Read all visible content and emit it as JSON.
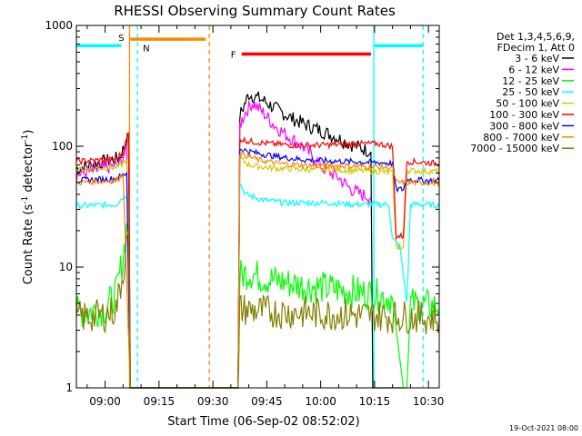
{
  "chart_data": {
    "type": "line",
    "title": "RHESSI Observing Summary Count Rates",
    "xlabel": "Start Time (06-Sep-02 08:52:02)",
    "ylabel_main": "Count Rate (s",
    "ylabel_sup1": "-1",
    "ylabel_mid": " detector",
    "ylabel_sup2": "-1",
    "ylabel_end": ")",
    "yscale": "log",
    "ylim": [
      1,
      1000
    ],
    "xlim_minutes": [
      52,
      153
    ],
    "y_ticks": [
      {
        "value": 1,
        "label": "1"
      },
      {
        "value": 10,
        "label": "10"
      },
      {
        "value": 100,
        "label": "100"
      },
      {
        "value": 1000,
        "label": "1000"
      }
    ],
    "x_ticks": [
      {
        "value": 60,
        "label": "09:00"
      },
      {
        "value": 75,
        "label": "09:15"
      },
      {
        "value": 90,
        "label": "09:30"
      },
      {
        "value": 105,
        "label": "09:45"
      },
      {
        "value": 120,
        "label": "10:00"
      },
      {
        "value": 135,
        "label": "10:15"
      },
      {
        "value": 150,
        "label": "10:30"
      }
    ],
    "legend_header": [
      "Det 1,3,4,5,6,9,",
      "FDecim 1, Att 0"
    ],
    "series": [
      {
        "name": "3 - 6 keV",
        "color": "#000000",
        "values": [
          [
            52,
            65
          ],
          [
            64,
            80
          ],
          [
            66.5,
            120
          ],
          [
            67,
            1
          ],
          [
            80,
            1
          ],
          [
            88,
            1
          ],
          [
            97,
            1
          ],
          [
            97.5,
            180
          ],
          [
            100,
            270
          ],
          [
            104,
            240
          ],
          [
            108,
            200
          ],
          [
            112,
            170
          ],
          [
            116,
            150
          ],
          [
            120,
            135
          ],
          [
            124,
            120
          ],
          [
            128,
            105
          ],
          [
            132,
            95
          ],
          [
            134,
            90
          ],
          [
            134.5,
            1
          ],
          [
            135.5,
            1
          ],
          [
            143,
            1
          ]
        ]
      },
      {
        "name": "6 - 12 keV",
        "color": "#ff00ff",
        "values": [
          [
            52,
            58
          ],
          [
            64,
            70
          ],
          [
            66,
            95
          ],
          [
            67,
            1
          ],
          [
            97,
            1
          ],
          [
            97.5,
            150
          ],
          [
            99,
            190
          ],
          [
            101,
            230
          ],
          [
            104,
            190
          ],
          [
            107,
            150
          ],
          [
            111,
            120
          ],
          [
            115,
            100
          ],
          [
            118,
            80
          ],
          [
            121,
            65
          ],
          [
            125,
            55
          ],
          [
            128,
            45
          ],
          [
            131,
            40
          ],
          [
            134,
            38
          ]
        ]
      },
      {
        "name": "12 - 25 keV",
        "color": "#00ff00",
        "values": [
          [
            52,
            4.2
          ],
          [
            60,
            4.5
          ],
          [
            63,
            6
          ],
          [
            65,
            12
          ],
          [
            66.5,
            30
          ],
          [
            67,
            1
          ],
          [
            97,
            1
          ],
          [
            97.5,
            8.5
          ],
          [
            100,
            9
          ],
          [
            105,
            8
          ],
          [
            110,
            7.5
          ],
          [
            115,
            7
          ],
          [
            120,
            6.8
          ],
          [
            125,
            6.5
          ],
          [
            130,
            6.2
          ],
          [
            134,
            6
          ],
          [
            137,
            5.8
          ],
          [
            140,
            5.5
          ],
          [
            143,
            1
          ],
          [
            144,
            1
          ],
          [
            145,
            5
          ],
          [
            150,
            4.8
          ],
          [
            153,
            4.7
          ]
        ]
      },
      {
        "name": "25 - 50 keV",
        "color": "#00ffff",
        "values": [
          [
            52,
            32
          ],
          [
            63,
            33
          ],
          [
            65,
            38
          ],
          [
            66.5,
            40
          ],
          [
            67,
            1
          ],
          [
            97,
            1
          ],
          [
            97.5,
            50
          ],
          [
            99,
            40
          ],
          [
            104,
            36
          ],
          [
            110,
            34
          ],
          [
            116,
            34
          ],
          [
            122,
            34
          ],
          [
            128,
            33
          ],
          [
            134,
            33
          ],
          [
            139,
            33
          ],
          [
            140,
            17
          ],
          [
            142,
            15
          ],
          [
            144,
            5
          ],
          [
            145,
            33
          ],
          [
            150,
            33
          ],
          [
            153,
            32
          ]
        ]
      },
      {
        "name": "50 - 100 keV",
        "color": "#cccc00",
        "values": [
          [
            52,
            64
          ],
          [
            64,
            68
          ],
          [
            66,
            78
          ],
          [
            67,
            1
          ],
          [
            97,
            1
          ],
          [
            97.5,
            80
          ],
          [
            100,
            70
          ],
          [
            106,
            66
          ],
          [
            112,
            65
          ],
          [
            118,
            64
          ],
          [
            124,
            64
          ],
          [
            130,
            63
          ],
          [
            136,
            62
          ],
          [
            140,
            60
          ],
          [
            141,
            15
          ],
          [
            143,
            14
          ],
          [
            144,
            63
          ],
          [
            150,
            62
          ],
          [
            153,
            62
          ]
        ]
      },
      {
        "name": "100 - 300 keV",
        "color": "#ff0000",
        "values": [
          [
            52,
            75
          ],
          [
            63,
            78
          ],
          [
            65,
            90
          ],
          [
            66.5,
            130
          ],
          [
            67,
            1
          ],
          [
            97,
            1
          ],
          [
            97.5,
            115
          ],
          [
            100,
            110
          ],
          [
            106,
            105
          ],
          [
            112,
            102
          ],
          [
            118,
            102
          ],
          [
            124,
            103
          ],
          [
            130,
            105
          ],
          [
            136,
            105
          ],
          [
            140,
            100
          ],
          [
            141,
            18
          ],
          [
            143,
            18
          ],
          [
            144,
            75
          ],
          [
            150,
            73
          ],
          [
            153,
            72
          ]
        ]
      },
      {
        "name": "300 - 800 keV",
        "color": "#0000ff",
        "values": [
          [
            52,
            52
          ],
          [
            63,
            54
          ],
          [
            66,
            60
          ],
          [
            67,
            1
          ],
          [
            97,
            1
          ],
          [
            97.5,
            95
          ],
          [
            102,
            88
          ],
          [
            108,
            82
          ],
          [
            114,
            78
          ],
          [
            120,
            76
          ],
          [
            126,
            75
          ],
          [
            132,
            74
          ],
          [
            138,
            73
          ],
          [
            140,
            72
          ],
          [
            141,
            44
          ],
          [
            143,
            44
          ],
          [
            144,
            53
          ],
          [
            150,
            52
          ],
          [
            153,
            52
          ]
        ]
      },
      {
        "name": "800 - 7000 keV",
        "color": "#ff8800",
        "values": [
          [
            52,
            50
          ],
          [
            63,
            52
          ],
          [
            65,
            58
          ],
          [
            67,
            1
          ],
          [
            97,
            1
          ],
          [
            97.5,
            88
          ],
          [
            102,
            78
          ],
          [
            108,
            72
          ],
          [
            114,
            70
          ],
          [
            120,
            69
          ],
          [
            126,
            69
          ],
          [
            132,
            68
          ],
          [
            138,
            67
          ],
          [
            140,
            66
          ],
          [
            141,
            50
          ],
          [
            144,
            50
          ],
          [
            150,
            50
          ],
          [
            153,
            50
          ]
        ]
      },
      {
        "name": "7000 - 15000 keV",
        "color": "#808000",
        "values": [
          [
            52,
            3.8
          ],
          [
            60,
            4
          ],
          [
            63,
            4.5
          ],
          [
            65,
            9
          ],
          [
            66.5,
            20
          ],
          [
            67,
            1
          ],
          [
            97,
            1
          ],
          [
            97.5,
            4.5
          ],
          [
            100,
            4.4
          ],
          [
            105,
            4.3
          ],
          [
            110,
            4.2
          ],
          [
            115,
            4.2
          ],
          [
            120,
            4.1
          ],
          [
            125,
            4.1
          ],
          [
            130,
            4.0
          ],
          [
            135,
            4.0
          ],
          [
            140,
            3.9
          ],
          [
            145,
            3.9
          ],
          [
            150,
            3.8
          ],
          [
            153,
            3.8
          ]
        ]
      }
    ],
    "annotations": {
      "saa_label": "S",
      "night_label": "N",
      "flare_label": "F",
      "saa_bar": {
        "start": 67,
        "end": 88,
        "value": 770,
        "color": "#ff8800"
      },
      "night_bars": [
        {
          "start": 52,
          "end": 64.5,
          "value": 680,
          "color": "#00ffff"
        },
        {
          "start": 134.8,
          "end": 148.5,
          "value": 680,
          "color": "#00ffff"
        }
      ],
      "flare_bar": {
        "start": 98,
        "end": 134,
        "value": 580,
        "color": "#ff0000"
      },
      "vlines": [
        {
          "x": 66.8,
          "style": "solid",
          "color": "#ff8800"
        },
        {
          "x": 69,
          "style": "dashed",
          "color": "#00ffff"
        },
        {
          "x": 89,
          "style": "dashed",
          "color": "#ff8800"
        },
        {
          "x": 134.8,
          "style": "solid",
          "color": "#00ffff"
        },
        {
          "x": 148.5,
          "style": "dashed",
          "color": "#00ffff"
        }
      ]
    },
    "timestamp": "19-Oct-2021 08:00"
  }
}
